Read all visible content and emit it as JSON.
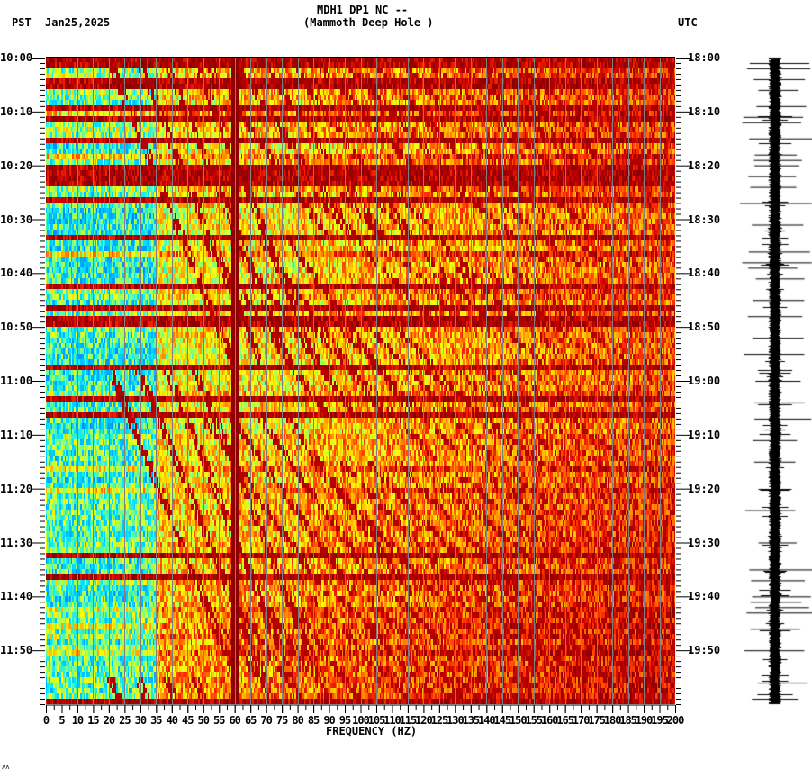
{
  "header": {
    "title_line1": "MDH1 DP1 NC --",
    "title_line2": "(Mammoth Deep Hole )",
    "left_timezone": "PST",
    "date": "Jan25,2025",
    "right_timezone": "UTC"
  },
  "footer": {
    "corner_mark": "ʌʌ"
  },
  "colors": {
    "background": "#ffffff",
    "axis": "#000000",
    "gridline": "#808080",
    "colormap": [
      "#0050ff",
      "#0096ff",
      "#00e6ff",
      "#80ff80",
      "#ffff00",
      "#ffa000",
      "#ff3000",
      "#c00000",
      "#8b0000"
    ]
  },
  "chart_data": [
    {
      "type": "heatmap",
      "title": "MDH1 DP1 NC -- (Mammoth Deep Hole )",
      "subtitle": "Spectrogram, Jan25,2025",
      "xlabel": "FREQUENCY (HZ)",
      "ylabel_left": "PST",
      "ylabel_right": "UTC",
      "xlim": [
        0,
        200
      ],
      "x_ticks": [
        0,
        5,
        10,
        15,
        20,
        25,
        30,
        35,
        40,
        45,
        50,
        55,
        60,
        65,
        70,
        75,
        80,
        85,
        90,
        95,
        100,
        105,
        110,
        115,
        120,
        125,
        130,
        135,
        140,
        145,
        150,
        155,
        160,
        165,
        170,
        175,
        180,
        185,
        190,
        195,
        200
      ],
      "x_gridlines_every_hz": 10,
      "y_minutes": 120,
      "y_ticks_left": [
        "10:00",
        "10:10",
        "10:20",
        "10:30",
        "10:40",
        "10:50",
        "11:00",
        "11:10",
        "11:20",
        "11:30",
        "11:40",
        "11:50"
      ],
      "y_ticks_right": [
        "18:00",
        "18:10",
        "18:20",
        "18:30",
        "18:40",
        "18:50",
        "19:00",
        "19:10",
        "19:20",
        "19:30",
        "19:40",
        "19:50"
      ],
      "y_minor_tick_every_min": 1,
      "persistent_line_hz": 60,
      "notes": "Strong continuous 60 Hz line; broadband high-energy (dark red) horizontal bands at roughly minutes 1,4-5,9-11,15-16,20-23,26,33,36,42,46,48-50,57,63,66,70,84,92,96,103,107,112,119; low frequencies (0-35 Hz) mostly blue/cyan at quiet times; frequencies above ~100 Hz mostly yellow/orange, increasing to orange/red after 11:10; descending/gliding tonal streaks across 35-180 Hz.",
      "row_energy": [
        0.95,
        0.9,
        0.55,
        0.6,
        0.92,
        0.92,
        0.55,
        0.5,
        0.45,
        0.95,
        0.85,
        0.95,
        0.5,
        0.6,
        0.55,
        0.9,
        0.3,
        0.35,
        0.85,
        0.5,
        0.9,
        0.95,
        0.95,
        0.9,
        0.6,
        0.45,
        0.9,
        0.4,
        0.3,
        0.3,
        0.3,
        0.35,
        0.3,
        0.95,
        0.35,
        0.3,
        0.85,
        0.35,
        0.3,
        0.3,
        0.35,
        0.35,
        0.95,
        0.55,
        0.5,
        0.35,
        0.9,
        0.45,
        0.95,
        0.95,
        0.45,
        0.4,
        0.35,
        0.35,
        0.3,
        0.35,
        0.35,
        0.9,
        0.35,
        0.3,
        0.35,
        0.4,
        0.55,
        0.95,
        0.4,
        0.45,
        0.95,
        0.35,
        0.3,
        0.3,
        0.5,
        0.45,
        0.45,
        0.4,
        0.4,
        0.4,
        0.75,
        0.4,
        0.35,
        0.45,
        0.8,
        0.4,
        0.45,
        0.4,
        0.5,
        0.45,
        0.45,
        0.45,
        0.4,
        0.45,
        0.5,
        0.5,
        0.95,
        0.35,
        0.35,
        0.35,
        0.9,
        0.55,
        0.4,
        0.35,
        0.35,
        0.4,
        0.7,
        0.5,
        0.45,
        0.7,
        0.45,
        0.65,
        0.35,
        0.55,
        0.75,
        0.4,
        0.4,
        0.45,
        0.4,
        0.45,
        0.45,
        0.4,
        0.5,
        0.95
      ],
      "trace_spike_minutes": [
        1,
        2,
        4,
        6,
        9,
        11,
        12,
        15,
        18,
        19,
        20,
        22,
        24,
        27,
        31,
        36,
        38,
        39,
        41,
        45,
        48,
        52,
        55,
        60,
        64,
        67,
        71,
        75,
        84,
        90,
        95,
        97,
        100,
        101,
        102,
        103,
        106,
        110,
        116,
        119
      ]
    }
  ]
}
